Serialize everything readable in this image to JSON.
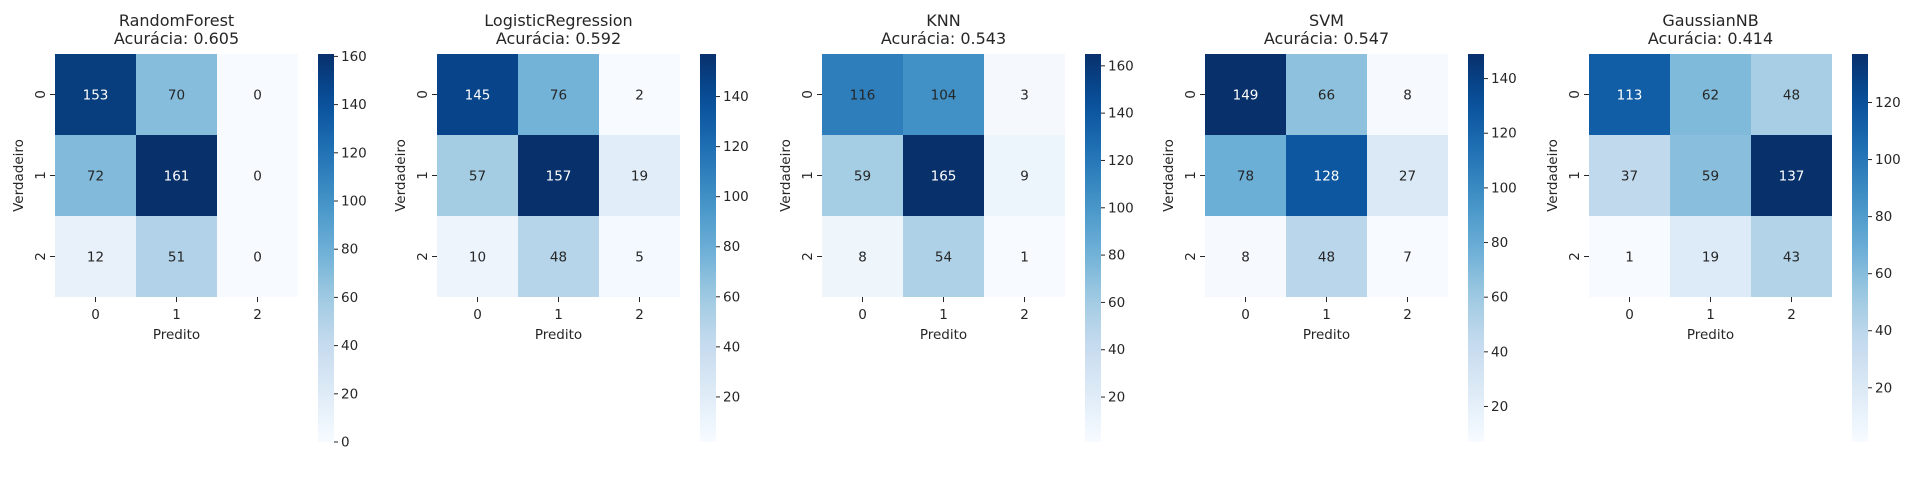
{
  "chart_data": [
    {
      "type": "heatmap",
      "title": "RandomForest",
      "subtitle": "Acurácia: 0.605",
      "xlabel": "Predito",
      "ylabel": "Verdadeiro",
      "x_categories": [
        "0",
        "1",
        "2"
      ],
      "y_categories": [
        "0",
        "1",
        "2"
      ],
      "values": [
        [
          153,
          70,
          0
        ],
        [
          72,
          161,
          0
        ],
        [
          12,
          51,
          0
        ]
      ],
      "vmin": 0,
      "vmax": 161,
      "colorbar_ticks": [
        0,
        20,
        40,
        60,
        80,
        100,
        120,
        140,
        160
      ],
      "colormap": "Blues"
    },
    {
      "type": "heatmap",
      "title": "LogisticRegression",
      "subtitle": "Acurácia: 0.592",
      "xlabel": "Predito",
      "ylabel": "Verdadeiro",
      "x_categories": [
        "0",
        "1",
        "2"
      ],
      "y_categories": [
        "0",
        "1",
        "2"
      ],
      "values": [
        [
          145,
          76,
          2
        ],
        [
          57,
          157,
          19
        ],
        [
          10,
          48,
          5
        ]
      ],
      "vmin": 2,
      "vmax": 157,
      "colorbar_ticks": [
        20,
        40,
        60,
        80,
        100,
        120,
        140
      ],
      "colormap": "Blues"
    },
    {
      "type": "heatmap",
      "title": "KNN",
      "subtitle": "Acurácia: 0.543",
      "xlabel": "Predito",
      "ylabel": "Verdadeiro",
      "x_categories": [
        "0",
        "1",
        "2"
      ],
      "y_categories": [
        "0",
        "1",
        "2"
      ],
      "values": [
        [
          116,
          104,
          3
        ],
        [
          59,
          165,
          9
        ],
        [
          8,
          54,
          1
        ]
      ],
      "vmin": 1,
      "vmax": 165,
      "colorbar_ticks": [
        20,
        40,
        60,
        80,
        100,
        120,
        140,
        160
      ],
      "colormap": "Blues"
    },
    {
      "type": "heatmap",
      "title": "SVM",
      "subtitle": "Acurácia: 0.547",
      "xlabel": "Predito",
      "ylabel": "Verdadeiro",
      "x_categories": [
        "0",
        "1",
        "2"
      ],
      "y_categories": [
        "0",
        "1",
        "2"
      ],
      "values": [
        [
          149,
          66,
          8
        ],
        [
          78,
          128,
          27
        ],
        [
          8,
          48,
          7
        ]
      ],
      "vmin": 7,
      "vmax": 149,
      "colorbar_ticks": [
        20,
        40,
        60,
        80,
        100,
        120,
        140
      ],
      "colormap": "Blues"
    },
    {
      "type": "heatmap",
      "title": "GaussianNB",
      "subtitle": "Acurácia: 0.414",
      "xlabel": "Predito",
      "ylabel": "Verdadeiro",
      "x_categories": [
        "0",
        "1",
        "2"
      ],
      "y_categories": [
        "0",
        "1",
        "2"
      ],
      "values": [
        [
          113,
          62,
          48
        ],
        [
          37,
          59,
          137
        ],
        [
          1,
          19,
          43
        ]
      ],
      "vmin": 1,
      "vmax": 137,
      "colorbar_ticks": [
        20,
        40,
        60,
        80,
        100,
        120
      ],
      "colormap": "Blues"
    }
  ]
}
